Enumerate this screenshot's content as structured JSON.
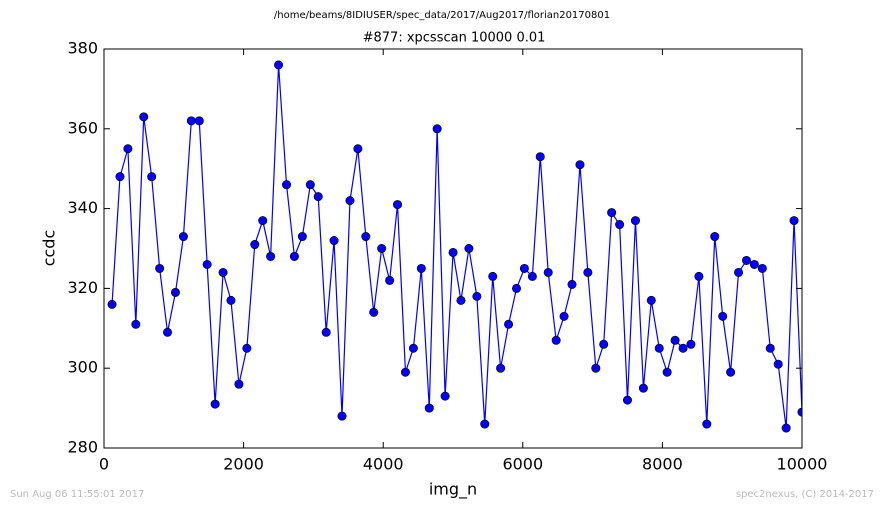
{
  "chart_data": {
    "type": "line",
    "suptitle": "/home/beams/8IDIUSER/spec_data/2017/Aug2017/florian20170801",
    "title": "#877: xpcsscan 10000 0.01",
    "x_label": "img_n",
    "y_label": "ccdc",
    "footer_left": "Sun Aug 06 11:55:01 2017",
    "footer_right": "spec2nexus, (C) 2014-2017",
    "x": [
      115,
      229,
      342,
      456,
      569,
      683,
      797,
      910,
      1024,
      1138,
      1251,
      1365,
      1478,
      1592,
      1706,
      1819,
      1933,
      2047,
      2160,
      2274,
      2387,
      2501,
      2615,
      2728,
      2842,
      2956,
      3069,
      3183,
      3296,
      3410,
      3524,
      3637,
      3751,
      3864,
      3978,
      4092,
      4205,
      4319,
      4433,
      4546,
      4660,
      4773,
      4887,
      5001,
      5114,
      5228,
      5342,
      5455,
      5569,
      5682,
      5796,
      5910,
      6023,
      6137,
      6250,
      6364,
      6478,
      6591,
      6705,
      6819,
      6932,
      7046,
      7159,
      7273,
      7387,
      7500,
      7614,
      7728,
      7841,
      7955,
      8068,
      8182,
      8296,
      8409,
      8523,
      8636,
      8750,
      8864,
      8977,
      9091,
      9205,
      9318,
      9432,
      9545,
      9659,
      9773,
      9886,
      10000
    ],
    "series": [
      {
        "color": "#0000ff",
        "marker_edge": "#000000",
        "values": [
          316,
          348,
          355,
          311,
          363,
          348,
          325,
          309,
          319,
          333,
          362,
          362,
          326,
          291,
          324,
          317,
          296,
          305,
          331,
          337,
          328,
          376,
          346,
          328,
          333,
          346,
          343,
          309,
          332,
          288,
          342,
          355,
          333,
          314,
          330,
          322,
          341,
          299,
          305,
          325,
          290,
          360,
          293,
          329,
          317,
          330,
          318,
          286,
          323,
          300,
          311,
          320,
          325,
          323,
          353,
          324,
          307,
          313,
          321,
          351,
          324,
          300,
          306,
          339,
          336,
          292,
          337,
          295,
          317,
          305,
          299,
          307,
          305,
          306,
          323,
          286,
          333,
          313,
          299,
          324,
          327,
          326,
          325,
          305,
          301,
          285,
          337,
          289
        ]
      }
    ],
    "xlim": [
      0,
      10000
    ],
    "ylim": [
      280,
      380
    ],
    "xticks": [
      0,
      2000,
      4000,
      6000,
      8000,
      10000
    ],
    "yticks": [
      280,
      300,
      320,
      340,
      360,
      380
    ],
    "grid": false
  }
}
